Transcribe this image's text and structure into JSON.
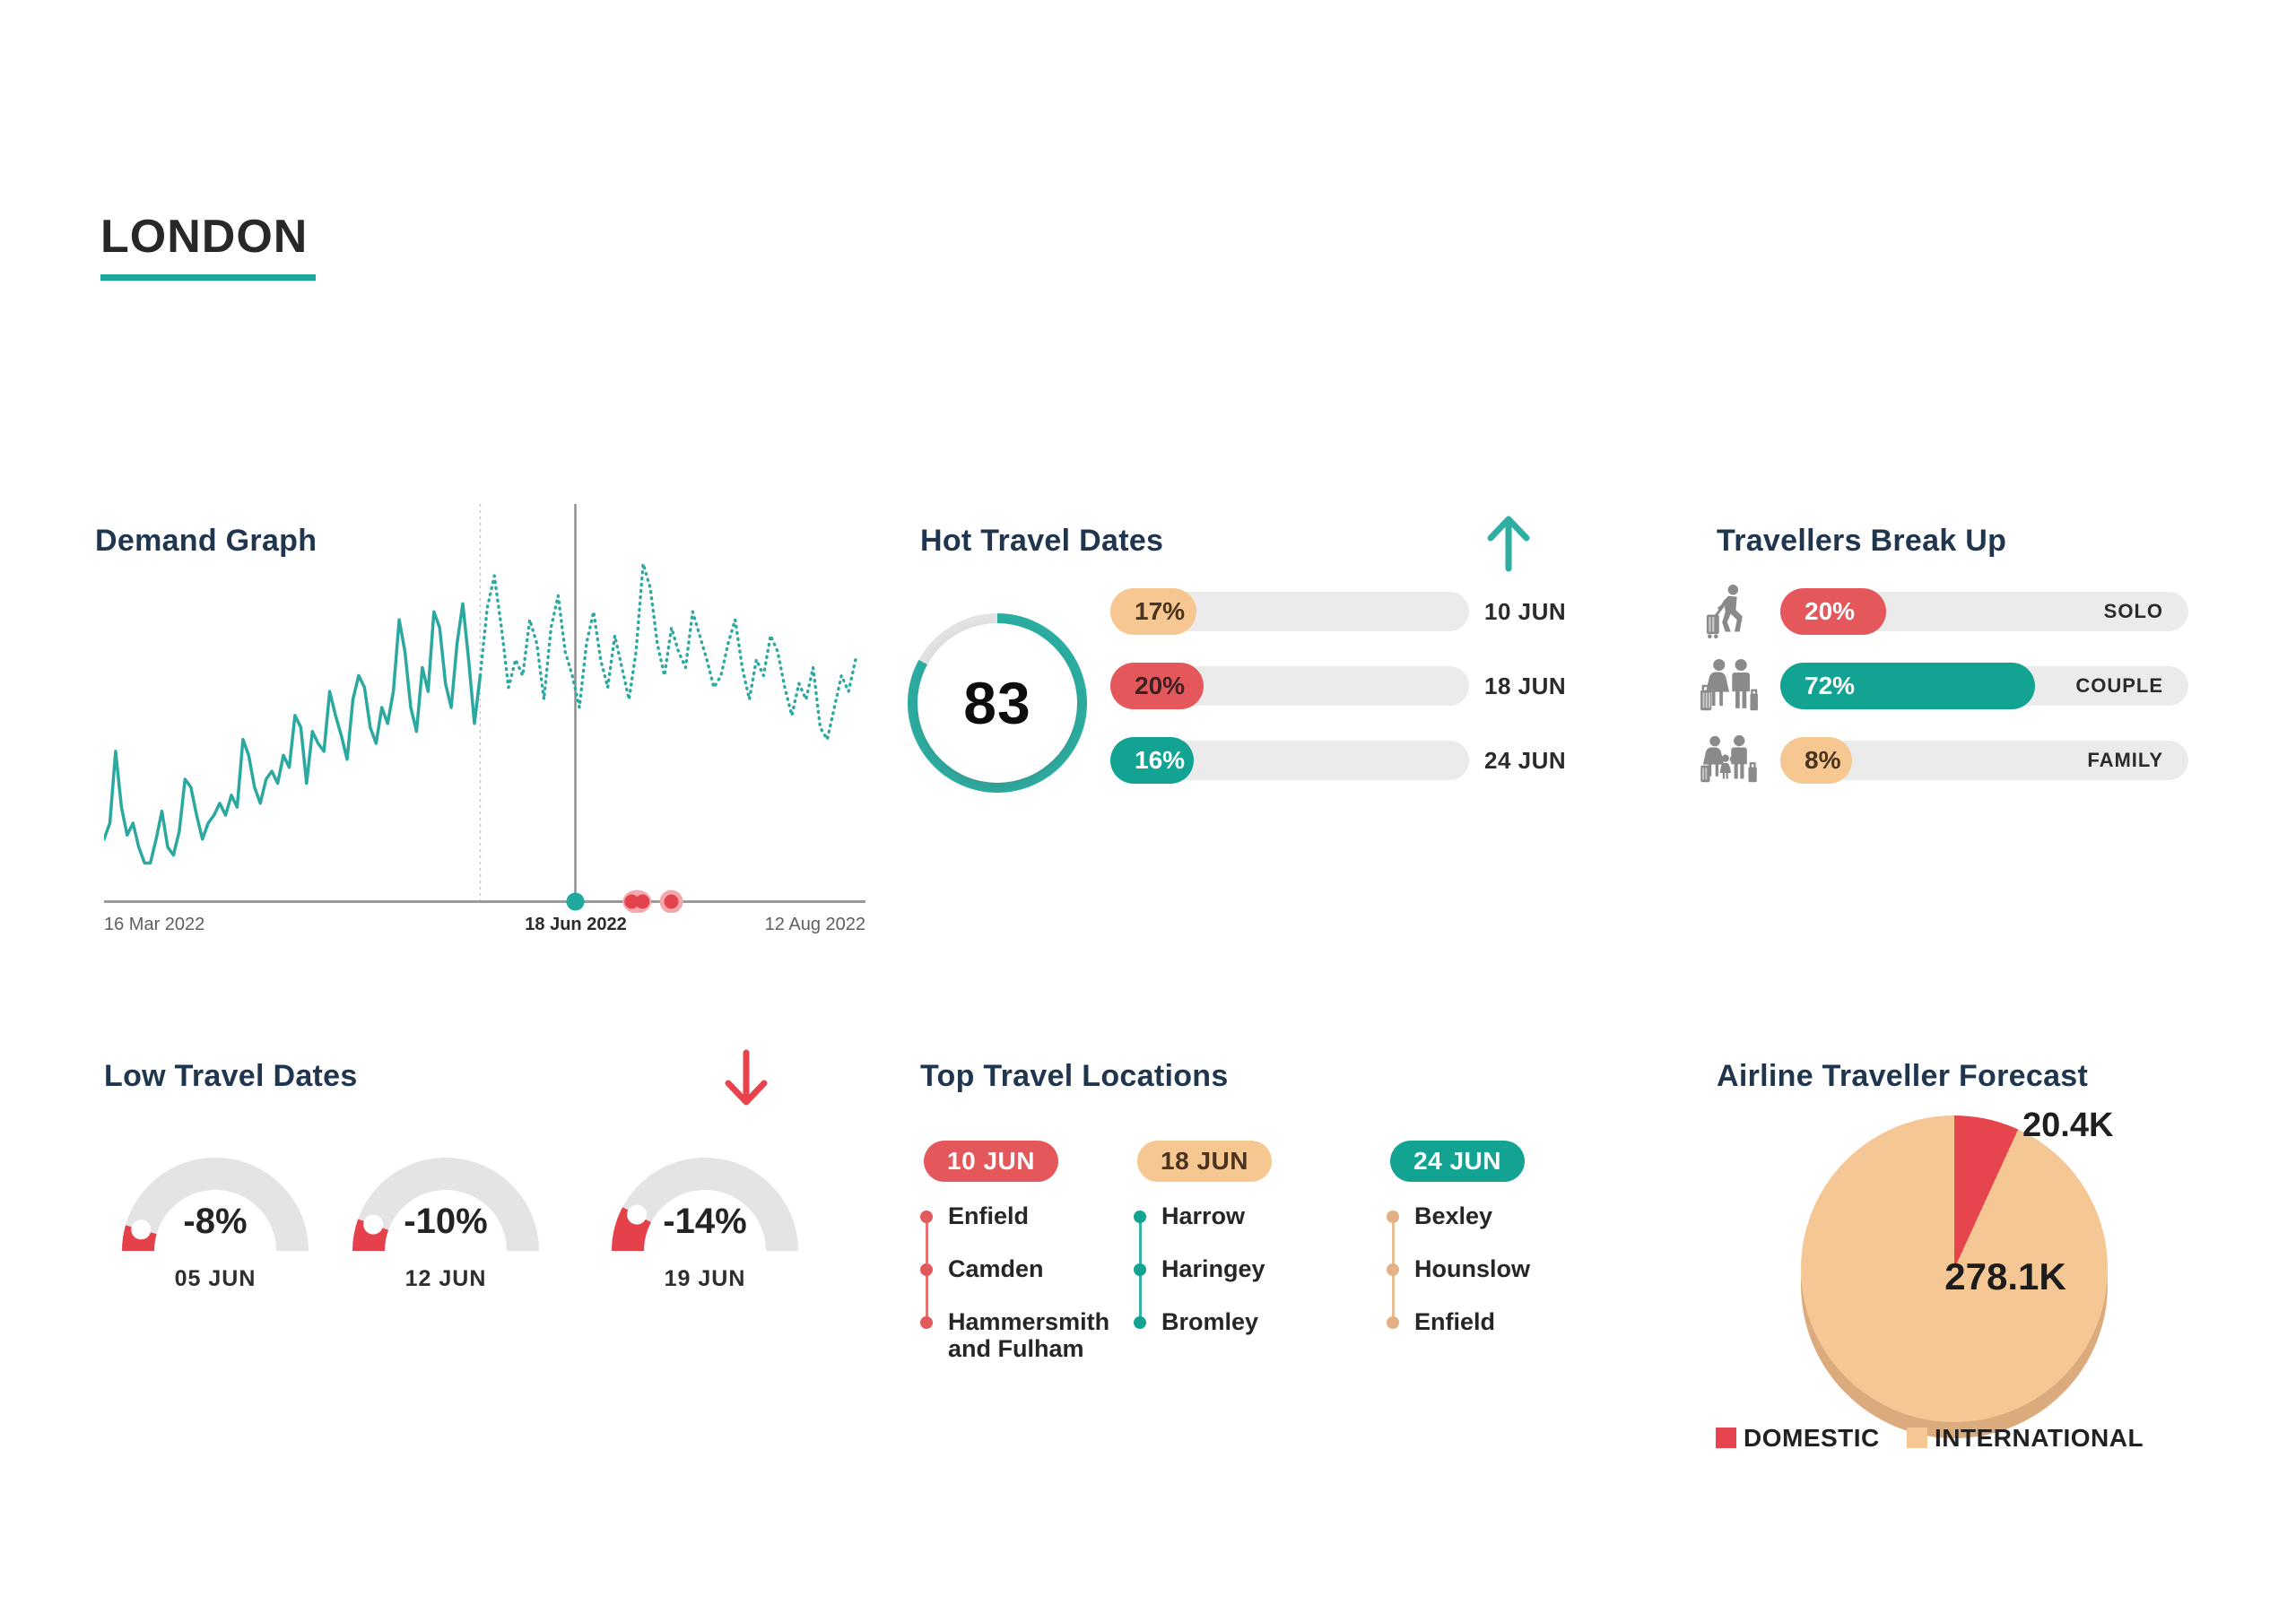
{
  "title": "LONDON",
  "demand": {
    "title": "Demand Graph",
    "x_labels": [
      "16 Mar 2022",
      "18 Jun 2022",
      "12 Aug 2022"
    ]
  },
  "hot": {
    "title": "Hot Travel Dates",
    "trend": "up",
    "score": "83",
    "score_pct": 83,
    "ring_color": "#2BADA1",
    "ring_track": "#E3E3E3",
    "bars": [
      {
        "value": 17,
        "label": "17%",
        "date": "10 JUN",
        "color": "#F6C791",
        "text_color": "#4A3420"
      },
      {
        "value": 20,
        "label": "20%",
        "date": "18 JUN",
        "color": "#E4575B",
        "text_color": "#3A2323"
      },
      {
        "value": 16,
        "label": "16%",
        "date": "24 JUN",
        "color": "#13A392",
        "text_color": "#FFFFFF"
      }
    ]
  },
  "travellers": {
    "title": "Travellers Break Up",
    "bars": [
      {
        "value": 20,
        "label": "20%",
        "name": "SOLO",
        "color": "#E4575B",
        "text_color": "#FFFFFF",
        "icon": "solo-traveller-icon"
      },
      {
        "value": 72,
        "label": "72%",
        "name": "COUPLE",
        "color": "#13A392",
        "text_color": "#FFFFFF",
        "icon": "couple-travellers-icon"
      },
      {
        "value": 8,
        "label": "8%",
        "name": "FAMILY",
        "color": "#F6C791",
        "text_color": "#4A3420",
        "icon": "family-travellers-icon"
      }
    ]
  },
  "low": {
    "title": "Low Travel Dates",
    "trend": "down",
    "gauges": [
      {
        "pct": 8,
        "label": "-8%",
        "date": "05 JUN"
      },
      {
        "pct": 10,
        "label": "-10%",
        "date": "12 JUN"
      },
      {
        "pct": 14,
        "label": "-14%",
        "date": "19 JUN"
      }
    ],
    "fill_color": "#E4414B",
    "track_color": "#E4E4E4"
  },
  "locations": {
    "title": "Top Travel Locations",
    "columns": [
      {
        "date": "10 JUN",
        "pill_color": "#E4575B",
        "pill_text_color": "#FFFFFF",
        "dot_color": "#E05A5C",
        "items": [
          "Enfield",
          "Camden",
          "Hammersmith\nand Fulham"
        ]
      },
      {
        "date": "18 JUN",
        "pill_color": "#F6C791",
        "pill_text_color": "#4A3420",
        "dot_color": "#13A392",
        "items": [
          "Harrow",
          "Haringey",
          "Bromley"
        ]
      },
      {
        "date": "24 JUN",
        "pill_color": "#13A392",
        "pill_text_color": "#FFFFFF",
        "dot_color": "#E3B184",
        "items": [
          "Bexley",
          "Hounslow",
          "Enfield"
        ]
      }
    ]
  },
  "forecast": {
    "title": "Airline Traveller Forecast",
    "slices": [
      {
        "name": "DOMESTIC",
        "label": "20.4K",
        "value": 20.4,
        "color": "#E7454E"
      },
      {
        "name": "INTERNATIONAL",
        "label": "278.1K",
        "value": 278.1,
        "color": "#F5C794"
      }
    ],
    "rim_color": "#DCAB7D"
  },
  "chart_data": [
    {
      "type": "line",
      "title": "Demand Graph",
      "xlabel": "date",
      "ylabel": "demand",
      "ylim": [
        0,
        100
      ],
      "grid": false,
      "x_ticks": [
        "16 Mar 2022",
        "18 Jun 2022",
        "12 Aug 2022"
      ],
      "annotations": {
        "forecast_divider_frac": 0.494,
        "today_line_frac": 0.619,
        "axis_markers": [
          {
            "x_frac": 0.619,
            "color": "#21A99F",
            "type": "dot"
          },
          {
            "x_frac": 0.7,
            "color": "#E2434D",
            "type": "double-dot-halo"
          },
          {
            "x_frac": 0.745,
            "color": "#E2434D",
            "type": "dot-halo"
          }
        ]
      },
      "series": [
        {
          "name": "actual",
          "style": "solid",
          "color": "#2BA9A0",
          "values": [
            16,
            20,
            38,
            24,
            17,
            20,
            14,
            10,
            10,
            16,
            23,
            14,
            12,
            18,
            31,
            29,
            22,
            16,
            20,
            22,
            25,
            22,
            27,
            24,
            41,
            37,
            29,
            25,
            31,
            33,
            30,
            37,
            34,
            47,
            44,
            30,
            43,
            40,
            38,
            53,
            47,
            42,
            36,
            51,
            57,
            54,
            44,
            40,
            49,
            45,
            53,
            71,
            63,
            49,
            43,
            59,
            53,
            73,
            69,
            55,
            49,
            65,
            75,
            61,
            45,
            57
          ]
        },
        {
          "name": "forecast",
          "style": "dotted",
          "color": "#2BA9A0",
          "values": [
            57,
            74,
            82,
            69,
            54,
            61,
            57,
            71,
            65,
            51,
            69,
            77,
            63,
            57,
            49,
            65,
            73,
            61,
            54,
            67,
            59,
            51,
            63,
            85,
            79,
            65,
            57,
            69,
            63,
            59,
            73,
            67,
            61,
            54,
            57,
            65,
            71,
            59,
            51,
            61,
            57,
            67,
            63,
            54,
            47,
            55,
            51,
            59,
            44,
            41,
            49,
            57,
            53,
            61
          ]
        }
      ]
    },
    {
      "type": "donut",
      "title": "Hot Travel Dates score",
      "value": 83,
      "max": 100,
      "color": "#2BADA1"
    },
    {
      "type": "bar",
      "title": "Hot Travel Dates",
      "categories": [
        "10 JUN",
        "18 JUN",
        "24 JUN"
      ],
      "values": [
        17,
        20,
        16
      ],
      "unit": "%"
    },
    {
      "type": "bar",
      "title": "Travellers Break Up",
      "categories": [
        "SOLO",
        "COUPLE",
        "FAMILY"
      ],
      "values": [
        20,
        72,
        8
      ],
      "unit": "%"
    },
    {
      "type": "gauge",
      "title": "Low Travel Dates",
      "categories": [
        "05 JUN",
        "12 JUN",
        "19 JUN"
      ],
      "values": [
        -8,
        -10,
        -14
      ],
      "unit": "%"
    },
    {
      "type": "pie",
      "title": "Airline Traveller Forecast",
      "labels": [
        "DOMESTIC",
        "INTERNATIONAL"
      ],
      "values": [
        20.4,
        278.1
      ],
      "value_labels": [
        "20.4K",
        "278.1K"
      ],
      "colors": [
        "#E7454E",
        "#F5C794"
      ],
      "legend_position": "bottom"
    }
  ]
}
